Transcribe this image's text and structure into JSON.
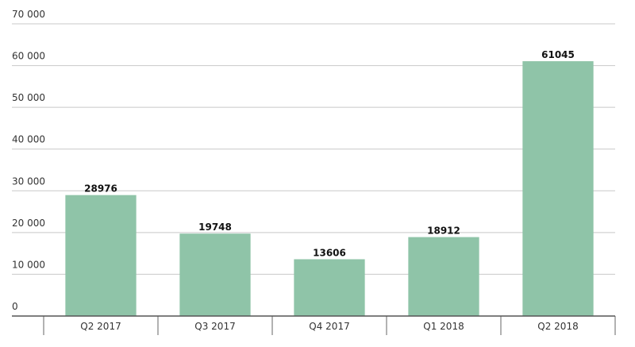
{
  "chart_data": {
    "type": "bar",
    "categories": [
      "Q2 2017",
      "Q3 2017",
      "Q4 2017",
      "Q1 2018",
      "Q2 2018"
    ],
    "values": [
      28976,
      19748,
      13606,
      18912,
      61045
    ],
    "color": "#8fc4a8",
    "ylim": [
      0,
      70000
    ],
    "yticks": [
      0,
      {
        "value": 10000,
        "label": "10 000"
      },
      {
        "value": 20000,
        "label": "20 000"
      },
      {
        "value": 30000,
        "label": "30 000"
      },
      {
        "value": 40000,
        "label": "40 000"
      },
      {
        "value": 50000,
        "label": "50 000"
      },
      {
        "value": 60000,
        "label": "60 000"
      },
      {
        "value": 70000,
        "label": "70 000"
      }
    ],
    "grid": true
  }
}
